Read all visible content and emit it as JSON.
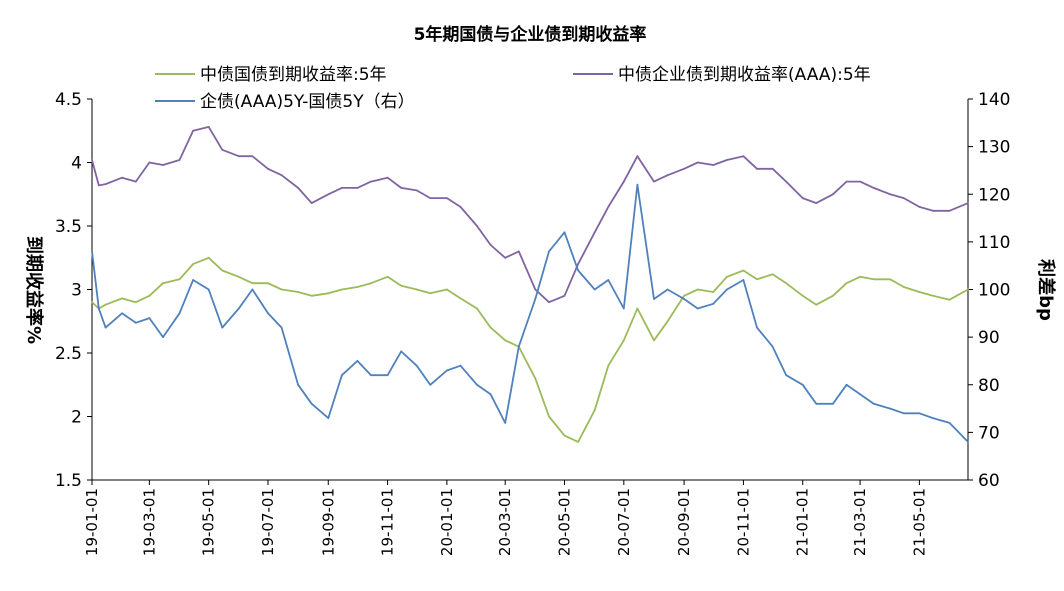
{
  "chart_data": {
    "type": "line",
    "title": "5年期国债与企业债到期收益率",
    "ylabel_left": "到期收益率%",
    "ylabel_right": "利差bp",
    "ylim_left": [
      1.5,
      4.5
    ],
    "ylim_right": [
      60,
      140
    ],
    "yticks_left": [
      "4.5",
      "4",
      "3.5",
      "3",
      "2.5",
      "2",
      "1.5"
    ],
    "yticks_right": [
      "140",
      "130",
      "120",
      "110",
      "100",
      "90",
      "80",
      "70",
      "60"
    ],
    "xlim": [
      "2019-01-01",
      "2021-06-20"
    ],
    "xticks": [
      "19-01-01",
      "19-03-01",
      "19-05-01",
      "19-07-01",
      "19-09-01",
      "19-11-01",
      "20-01-01",
      "20-03-01",
      "20-05-01",
      "20-07-01",
      "20-09-01",
      "20-11-01",
      "21-01-01",
      "21-03-01",
      "21-05-01"
    ],
    "grid": false,
    "legend_position": "top",
    "series": [
      {
        "name": "中债国债到期收益率:5年",
        "axis": "left",
        "color": "#9BBB59",
        "x": [
          "2019-01-01",
          "2019-01-08",
          "2019-01-15",
          "2019-02-01",
          "2019-02-15",
          "2019-03-01",
          "2019-03-15",
          "2019-04-01",
          "2019-04-15",
          "2019-05-01",
          "2019-05-15",
          "2019-06-01",
          "2019-06-15",
          "2019-07-01",
          "2019-07-15",
          "2019-08-01",
          "2019-08-15",
          "2019-09-01",
          "2019-09-15",
          "2019-10-01",
          "2019-10-15",
          "2019-11-01",
          "2019-11-15",
          "2019-12-01",
          "2019-12-15",
          "2020-01-01",
          "2020-01-15",
          "2020-02-01",
          "2020-02-15",
          "2020-03-01",
          "2020-03-15",
          "2020-04-01",
          "2020-04-15",
          "2020-05-01",
          "2020-05-15",
          "2020-06-01",
          "2020-06-15",
          "2020-07-01",
          "2020-07-15",
          "2020-08-01",
          "2020-08-15",
          "2020-09-01",
          "2020-09-15",
          "2020-10-01",
          "2020-10-15",
          "2020-11-01",
          "2020-11-15",
          "2020-12-01",
          "2020-12-15",
          "2021-01-01",
          "2021-01-15",
          "2021-02-01",
          "2021-02-15",
          "2021-03-01",
          "2021-03-15",
          "2021-04-01",
          "2021-04-15",
          "2021-05-01",
          "2021-05-15",
          "2021-06-01",
          "2021-06-20"
        ],
        "values": [
          2.9,
          2.85,
          2.88,
          2.93,
          2.9,
          2.95,
          3.05,
          3.08,
          3.2,
          3.25,
          3.15,
          3.1,
          3.05,
          3.05,
          3.0,
          2.98,
          2.95,
          2.97,
          3.0,
          3.02,
          3.05,
          3.1,
          3.03,
          3.0,
          2.97,
          3.0,
          2.93,
          2.85,
          2.7,
          2.6,
          2.55,
          2.3,
          2.0,
          1.85,
          1.8,
          2.05,
          2.4,
          2.6,
          2.85,
          2.6,
          2.75,
          2.95,
          3.0,
          2.98,
          3.1,
          3.15,
          3.08,
          3.12,
          3.05,
          2.95,
          2.88,
          2.95,
          3.05,
          3.1,
          3.08,
          3.08,
          3.02,
          2.98,
          2.95,
          2.92,
          3.0
        ]
      },
      {
        "name": "中债企业债到期收益率(AAA):5年",
        "axis": "left",
        "color": "#8064A2",
        "x": [
          "2019-01-01",
          "2019-01-08",
          "2019-01-15",
          "2019-02-01",
          "2019-02-15",
          "2019-03-01",
          "2019-03-15",
          "2019-04-01",
          "2019-04-15",
          "2019-05-01",
          "2019-05-15",
          "2019-06-01",
          "2019-06-15",
          "2019-07-01",
          "2019-07-15",
          "2019-08-01",
          "2019-08-15",
          "2019-09-01",
          "2019-09-15",
          "2019-10-01",
          "2019-10-15",
          "2019-11-01",
          "2019-11-15",
          "2019-12-01",
          "2019-12-15",
          "2020-01-01",
          "2020-01-15",
          "2020-02-01",
          "2020-02-15",
          "2020-03-01",
          "2020-03-15",
          "2020-04-01",
          "2020-04-15",
          "2020-05-01",
          "2020-05-15",
          "2020-06-01",
          "2020-06-15",
          "2020-07-01",
          "2020-07-15",
          "2020-08-01",
          "2020-08-15",
          "2020-09-01",
          "2020-09-15",
          "2020-10-01",
          "2020-10-15",
          "2020-11-01",
          "2020-11-15",
          "2020-12-01",
          "2020-12-15",
          "2021-01-01",
          "2021-01-15",
          "2021-02-01",
          "2021-02-15",
          "2021-03-01",
          "2021-03-15",
          "2021-04-01",
          "2021-04-15",
          "2021-05-01",
          "2021-05-15",
          "2021-06-01",
          "2021-06-20"
        ],
        "values": [
          4.02,
          3.82,
          3.83,
          3.88,
          3.85,
          4.0,
          3.98,
          4.02,
          4.25,
          4.28,
          4.1,
          4.05,
          4.05,
          3.95,
          3.9,
          3.8,
          3.68,
          3.75,
          3.8,
          3.8,
          3.85,
          3.88,
          3.8,
          3.78,
          3.72,
          3.72,
          3.65,
          3.5,
          3.35,
          3.25,
          3.3,
          3.0,
          2.9,
          2.95,
          3.2,
          3.45,
          3.65,
          3.85,
          4.05,
          3.85,
          3.9,
          3.95,
          4.0,
          3.98,
          4.02,
          4.05,
          3.95,
          3.95,
          3.85,
          3.72,
          3.68,
          3.75,
          3.85,
          3.85,
          3.8,
          3.75,
          3.72,
          3.65,
          3.62,
          3.62,
          3.68
        ]
      },
      {
        "name": "企债(AAA)5Y-国债5Y（右）",
        "axis": "right",
        "color": "#4F81BD",
        "x": [
          "2019-01-01",
          "2019-01-08",
          "2019-01-15",
          "2019-02-01",
          "2019-02-15",
          "2019-03-01",
          "2019-03-15",
          "2019-04-01",
          "2019-04-15",
          "2019-05-01",
          "2019-05-15",
          "2019-06-01",
          "2019-06-15",
          "2019-07-01",
          "2019-07-15",
          "2019-08-01",
          "2019-08-15",
          "2019-09-01",
          "2019-09-15",
          "2019-10-01",
          "2019-10-15",
          "2019-11-01",
          "2019-11-15",
          "2019-12-01",
          "2019-12-15",
          "2020-01-01",
          "2020-01-15",
          "2020-02-01",
          "2020-02-15",
          "2020-03-01",
          "2020-03-15",
          "2020-04-01",
          "2020-04-15",
          "2020-05-01",
          "2020-05-15",
          "2020-06-01",
          "2020-06-15",
          "2020-07-01",
          "2020-07-15",
          "2020-08-01",
          "2020-08-15",
          "2020-09-01",
          "2020-09-15",
          "2020-10-01",
          "2020-10-15",
          "2020-11-01",
          "2020-11-15",
          "2020-12-01",
          "2020-12-15",
          "2021-01-01",
          "2021-01-15",
          "2021-02-01",
          "2021-02-15",
          "2021-03-01",
          "2021-03-15",
          "2021-04-01",
          "2021-04-15",
          "2021-05-01",
          "2021-05-15",
          "2021-06-01",
          "2021-06-20"
        ],
        "values": [
          108,
          96,
          92,
          95,
          93,
          94,
          90,
          95,
          102,
          100,
          92,
          96,
          100,
          95,
          92,
          80,
          76,
          73,
          82,
          85,
          82,
          82,
          87,
          84,
          80,
          83,
          84,
          80,
          78,
          72,
          88,
          98,
          108,
          112,
          104,
          100,
          102,
          96,
          122,
          98,
          100,
          98,
          96,
          97,
          100,
          102,
          92,
          88,
          82,
          80,
          76,
          76,
          80,
          78,
          76,
          75,
          74,
          74,
          73,
          72,
          68
        ]
      }
    ]
  }
}
